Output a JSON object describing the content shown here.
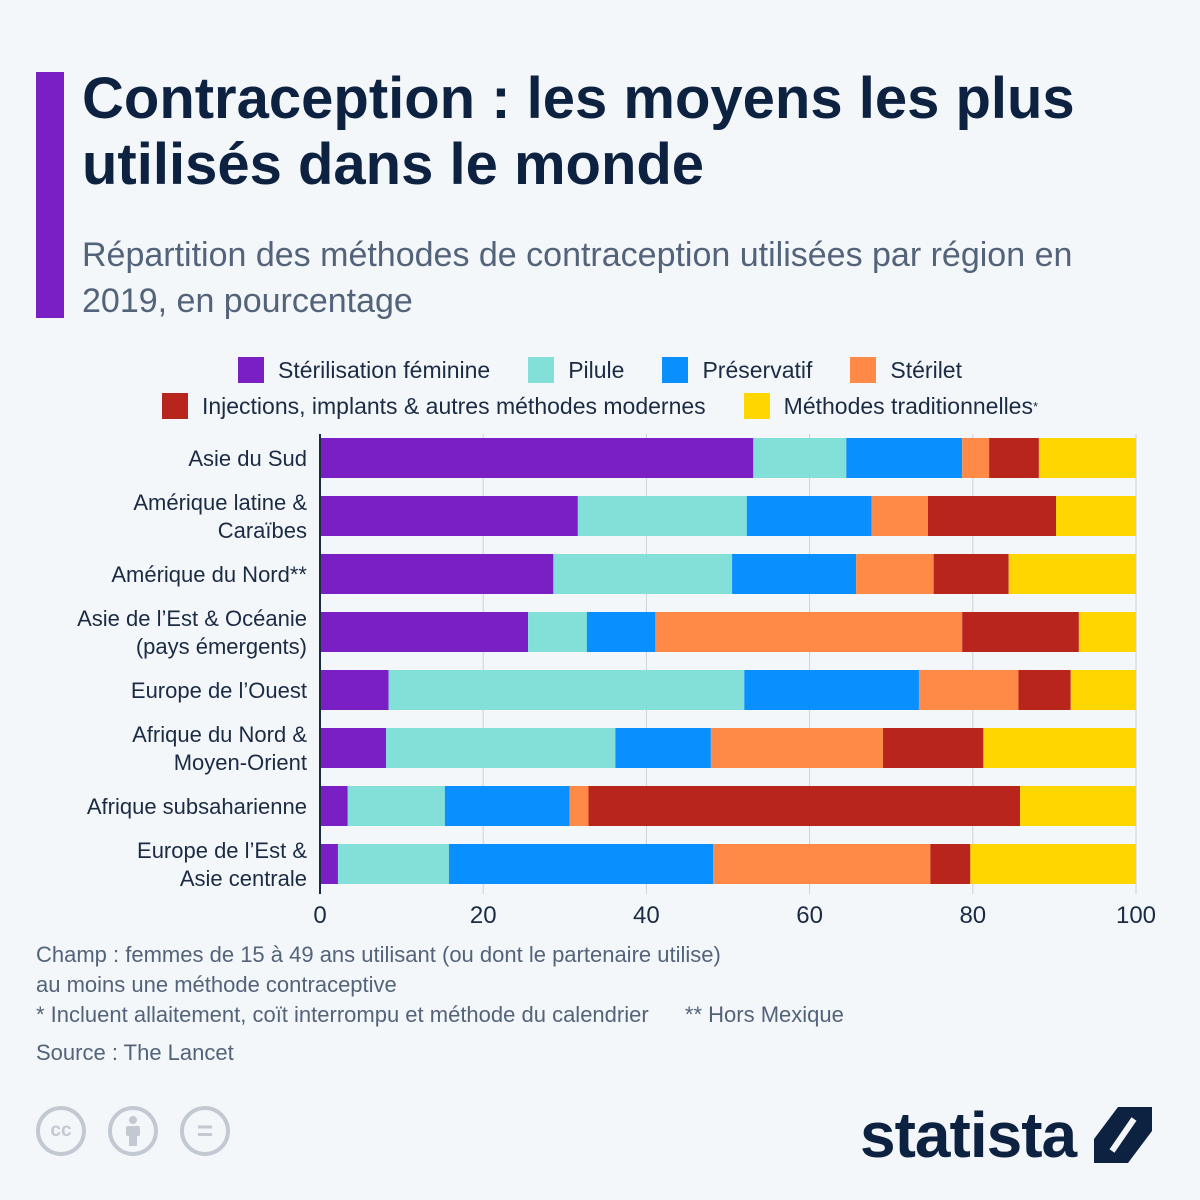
{
  "header": {
    "title": "Contraception : les moyens les plus utilisés dans le monde",
    "subtitle": "Répartition des méthodes de contraception utilisées par région en 2019, en pourcentage"
  },
  "legend": {
    "items": [
      {
        "label": "Stérilisation féminine",
        "color": "#7a1fc4"
      },
      {
        "label": "Pilule",
        "color": "#82e0d8"
      },
      {
        "label": "Préservatif",
        "color": "#0a8fff"
      },
      {
        "label": "Stérilet",
        "color": "#ff8a47"
      },
      {
        "label": "Injections, implants & autres méthodes modernes",
        "color": "#b8251d"
      },
      {
        "label": "Méthodes traditionnelles",
        "color": "#ffd600",
        "marker": "*"
      }
    ]
  },
  "chart_data": {
    "type": "bar",
    "orientation": "horizontal",
    "stacked": true,
    "xlim": [
      0,
      100
    ],
    "xticks": [
      0,
      20,
      40,
      60,
      80,
      100
    ],
    "grid": true,
    "categories": [
      "Asie du Sud",
      "Amérique latine & Caraïbes",
      "Amérique du Nord**",
      "Asie de l’Est & Océanie (pays émergents)",
      "Europe de l’Ouest",
      "Afrique du Nord & Moyen-Orient",
      "Afrique subsaharienne",
      "Europe de l’Est & Asie centrale"
    ],
    "category_lines": [
      [
        "Asie du Sud"
      ],
      [
        "Amérique latine &",
        "Caraïbes"
      ],
      [
        "Amérique du Nord**"
      ],
      [
        "Asie de l’Est & Océanie",
        "(pays émergents)"
      ],
      [
        "Europe de l’Ouest"
      ],
      [
        "Afrique du Nord &",
        "Moyen-Orient"
      ],
      [
        "Afrique subsaharienne"
      ],
      [
        "Europe de l’Est &",
        "Asie centrale"
      ]
    ],
    "series": [
      {
        "name": "Stérilisation féminine",
        "color": "#7a1fc4",
        "values": [
          53.1,
          31.6,
          28.6,
          25.5,
          8.4,
          8.1,
          3.4,
          2.2
        ]
      },
      {
        "name": "Pilule",
        "color": "#82e0d8",
        "values": [
          11.4,
          20.7,
          21.9,
          7.2,
          43.6,
          28.1,
          11.9,
          13.6
        ]
      },
      {
        "name": "Préservatif",
        "color": "#0a8fff",
        "values": [
          14.2,
          15.3,
          15.2,
          8.4,
          21.4,
          11.7,
          15.3,
          32.4
        ]
      },
      {
        "name": "Stérilet",
        "color": "#ff8a47",
        "values": [
          3.3,
          6.9,
          9.5,
          37.6,
          12.2,
          21.1,
          2.3,
          26.6
        ]
      },
      {
        "name": "Injections, implants & autres méthodes modernes",
        "color": "#b8251d",
        "values": [
          6.1,
          15.7,
          9.2,
          14.3,
          6.4,
          12.3,
          52.9,
          4.9
        ]
      },
      {
        "name": "Méthodes traditionnelles",
        "color": "#ffd600",
        "values": [
          11.9,
          9.8,
          15.6,
          7.0,
          8.0,
          18.7,
          14.2,
          20.3
        ]
      }
    ]
  },
  "footnotes": {
    "scope_line1": "Champ : femmes de 15 à 49 ans utilisant (ou dont le partenaire utilise)",
    "scope_line2": "au moins une méthode contraceptive",
    "asterisk_note": "* Incluent allaitement, coït interrompu et méthode du calendrier",
    "double_asterisk_note": "** Hors Mexique",
    "source": "Source : The Lancet"
  },
  "license_icons": [
    {
      "name": "cc-icon",
      "glyph": "cc"
    },
    {
      "name": "attribution-icon",
      "glyph": ""
    },
    {
      "name": "no-derivatives-icon",
      "glyph": "="
    }
  ],
  "brand": {
    "name": "statista"
  }
}
